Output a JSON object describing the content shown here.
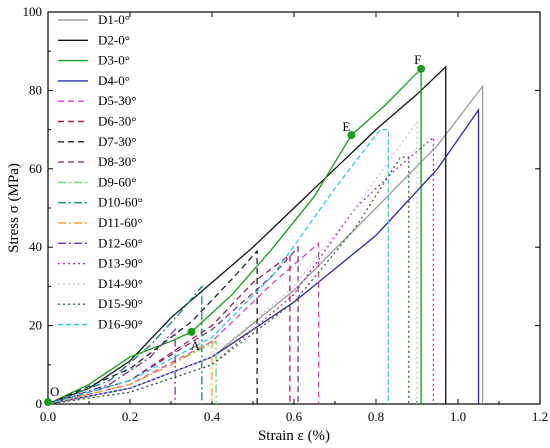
{
  "chart_data": {
    "type": "line",
    "xlabel": "Strain ε (%)",
    "ylabel": "Stress σ (MPa)",
    "xlim": [
      0,
      1.2
    ],
    "ylim": [
      0,
      100
    ],
    "xticks": [
      "0.0",
      "0.2",
      "0.4",
      "0.6",
      "0.8",
      "1.0",
      "1.2"
    ],
    "yticks": [
      "0",
      "20",
      "40",
      "60",
      "80",
      "100"
    ],
    "legend_position": "top-right",
    "series": [
      {
        "name": "D1-0°",
        "color": "#9a9a9a",
        "dash": "solid",
        "points": [
          [
            0,
            0
          ],
          [
            0.2,
            4
          ],
          [
            0.4,
            12
          ],
          [
            0.6,
            29
          ],
          [
            0.8,
            50
          ],
          [
            0.95,
            66
          ],
          [
            1.06,
            81
          ]
        ],
        "drop": [
          1.06,
          81
        ]
      },
      {
        "name": "D2-0°",
        "color": "#111111",
        "dash": "solid",
        "points": [
          [
            0,
            0
          ],
          [
            0.1,
            4
          ],
          [
            0.2,
            11
          ],
          [
            0.3,
            22
          ],
          [
            0.4,
            31
          ],
          [
            0.5,
            40
          ],
          [
            0.6,
            50
          ],
          [
            0.7,
            60
          ],
          [
            0.8,
            70
          ],
          [
            0.9,
            79
          ],
          [
            0.97,
            86
          ]
        ],
        "drop": [
          0.97,
          86
        ]
      },
      {
        "name": "D3-0°",
        "color": "#1a9b1a",
        "dash": "solid",
        "points": [
          [
            0,
            0
          ],
          [
            0.1,
            5
          ],
          [
            0.2,
            12
          ],
          [
            0.3,
            16
          ],
          [
            0.35,
            18.4
          ],
          [
            0.45,
            28
          ],
          [
            0.55,
            40
          ],
          [
            0.65,
            53
          ],
          [
            0.74,
            68.6
          ],
          [
            0.82,
            76
          ],
          [
            0.91,
            85.5
          ]
        ],
        "drop": [
          0.91,
          85.5
        ]
      },
      {
        "name": "D4-0°",
        "color": "#2b2b9c",
        "dash": "solid",
        "points": [
          [
            0,
            0
          ],
          [
            0.2,
            4
          ],
          [
            0.4,
            12
          ],
          [
            0.6,
            26
          ],
          [
            0.8,
            43
          ],
          [
            0.95,
            60
          ],
          [
            1.05,
            75
          ]
        ],
        "drop": [
          1.05,
          75
        ]
      },
      {
        "name": "D5-30°",
        "color": "#e040c0",
        "dash": "6,4",
        "points": [
          [
            0,
            0
          ],
          [
            0.2,
            5
          ],
          [
            0.4,
            16
          ],
          [
            0.55,
            31
          ],
          [
            0.66,
            41
          ]
        ],
        "drop": [
          0.66,
          41
        ]
      },
      {
        "name": "D6-30°",
        "color": "#a02050",
        "dash": "6,4",
        "points": [
          [
            0,
            0
          ],
          [
            0.2,
            6
          ],
          [
            0.4,
            20
          ],
          [
            0.5,
            31
          ],
          [
            0.59,
            38
          ]
        ],
        "drop": [
          0.59,
          38
        ]
      },
      {
        "name": "D7-30°",
        "color": "#202020",
        "dash": "6,4",
        "points": [
          [
            0,
            0
          ],
          [
            0.2,
            9
          ],
          [
            0.35,
            21
          ],
          [
            0.45,
            32
          ],
          [
            0.51,
            39
          ]
        ],
        "drop": [
          0.51,
          39
        ]
      },
      {
        "name": "D8-30°",
        "color": "#7a3a7a",
        "dash": "6,4",
        "points": [
          [
            0,
            0
          ],
          [
            0.2,
            6
          ],
          [
            0.4,
            19
          ],
          [
            0.55,
            33
          ],
          [
            0.61,
            40
          ]
        ],
        "drop": [
          0.61,
          40
        ]
      },
      {
        "name": "D9-60°",
        "color": "#6ad36a",
        "dash": "8,3,2,3",
        "points": [
          [
            0,
            0
          ],
          [
            0.2,
            5
          ],
          [
            0.3,
            10
          ],
          [
            0.41,
            16
          ]
        ],
        "drop": [
          0.41,
          16
        ]
      },
      {
        "name": "D10-60°",
        "color": "#208080",
        "dash": "8,3,2,3",
        "points": [
          [
            0,
            0
          ],
          [
            0.15,
            6
          ],
          [
            0.25,
            15
          ],
          [
            0.32,
            23
          ],
          [
            0.375,
            30
          ]
        ],
        "drop": [
          0.375,
          30
        ]
      },
      {
        "name": "D11-60°",
        "color": "#f0a040",
        "dash": "8,3,2,3",
        "points": [
          [
            0,
            0
          ],
          [
            0.2,
            5
          ],
          [
            0.3,
            10
          ],
          [
            0.4,
            16
          ]
        ],
        "drop": [
          0.4,
          16
        ]
      },
      {
        "name": "D12-60°",
        "color": "#6a3aa0",
        "dash": "8,3,2,3",
        "points": [
          [
            0,
            0
          ],
          [
            0.15,
            5
          ],
          [
            0.25,
            12
          ],
          [
            0.31,
            19
          ]
        ],
        "drop": [
          0.31,
          19
        ]
      },
      {
        "name": "D13-90°",
        "color": "#9a3aa0",
        "dash": "2,3",
        "points": [
          [
            0,
            0
          ],
          [
            0.2,
            3
          ],
          [
            0.4,
            10
          ],
          [
            0.6,
            28
          ],
          [
            0.75,
            50
          ],
          [
            0.85,
            60
          ],
          [
            0.94,
            68
          ]
        ],
        "drop": [
          0.94,
          68
        ]
      },
      {
        "name": "D14-90°",
        "color": "#c8c8c8",
        "dash": "2,3",
        "points": [
          [
            0,
            0
          ],
          [
            0.2,
            4
          ],
          [
            0.4,
            12
          ],
          [
            0.6,
            30
          ],
          [
            0.75,
            50
          ],
          [
            0.9,
            72
          ]
        ],
        "drop": [
          0.9,
          72
        ]
      },
      {
        "name": "D15-90°",
        "color": "#2e6b2e",
        "dash": "2,3",
        "points": [
          [
            0,
            0
          ],
          [
            0.2,
            3
          ],
          [
            0.4,
            10
          ],
          [
            0.6,
            26
          ],
          [
            0.75,
            45
          ],
          [
            0.86,
            63
          ]
        ],
        "drop": [
          0.88,
          63
        ]
      },
      {
        "name": "D16-90°",
        "color": "#30c8e0",
        "dash": "5,3",
        "points": [
          [
            0,
            0
          ],
          [
            0.2,
            6
          ],
          [
            0.4,
            17
          ],
          [
            0.55,
            33
          ],
          [
            0.7,
            55
          ],
          [
            0.81,
            70
          ]
        ],
        "drop": [
          0.83,
          70
        ]
      }
    ],
    "annotations": [
      {
        "label": "O",
        "x": 0.0,
        "y": 0.5
      },
      {
        "label": "A",
        "x": 0.35,
        "y": 18.4
      },
      {
        "label": "E",
        "x": 0.74,
        "y": 68.6
      },
      {
        "label": "F",
        "x": 0.91,
        "y": 85.5
      }
    ],
    "marker_color": "#1a9b1a"
  }
}
